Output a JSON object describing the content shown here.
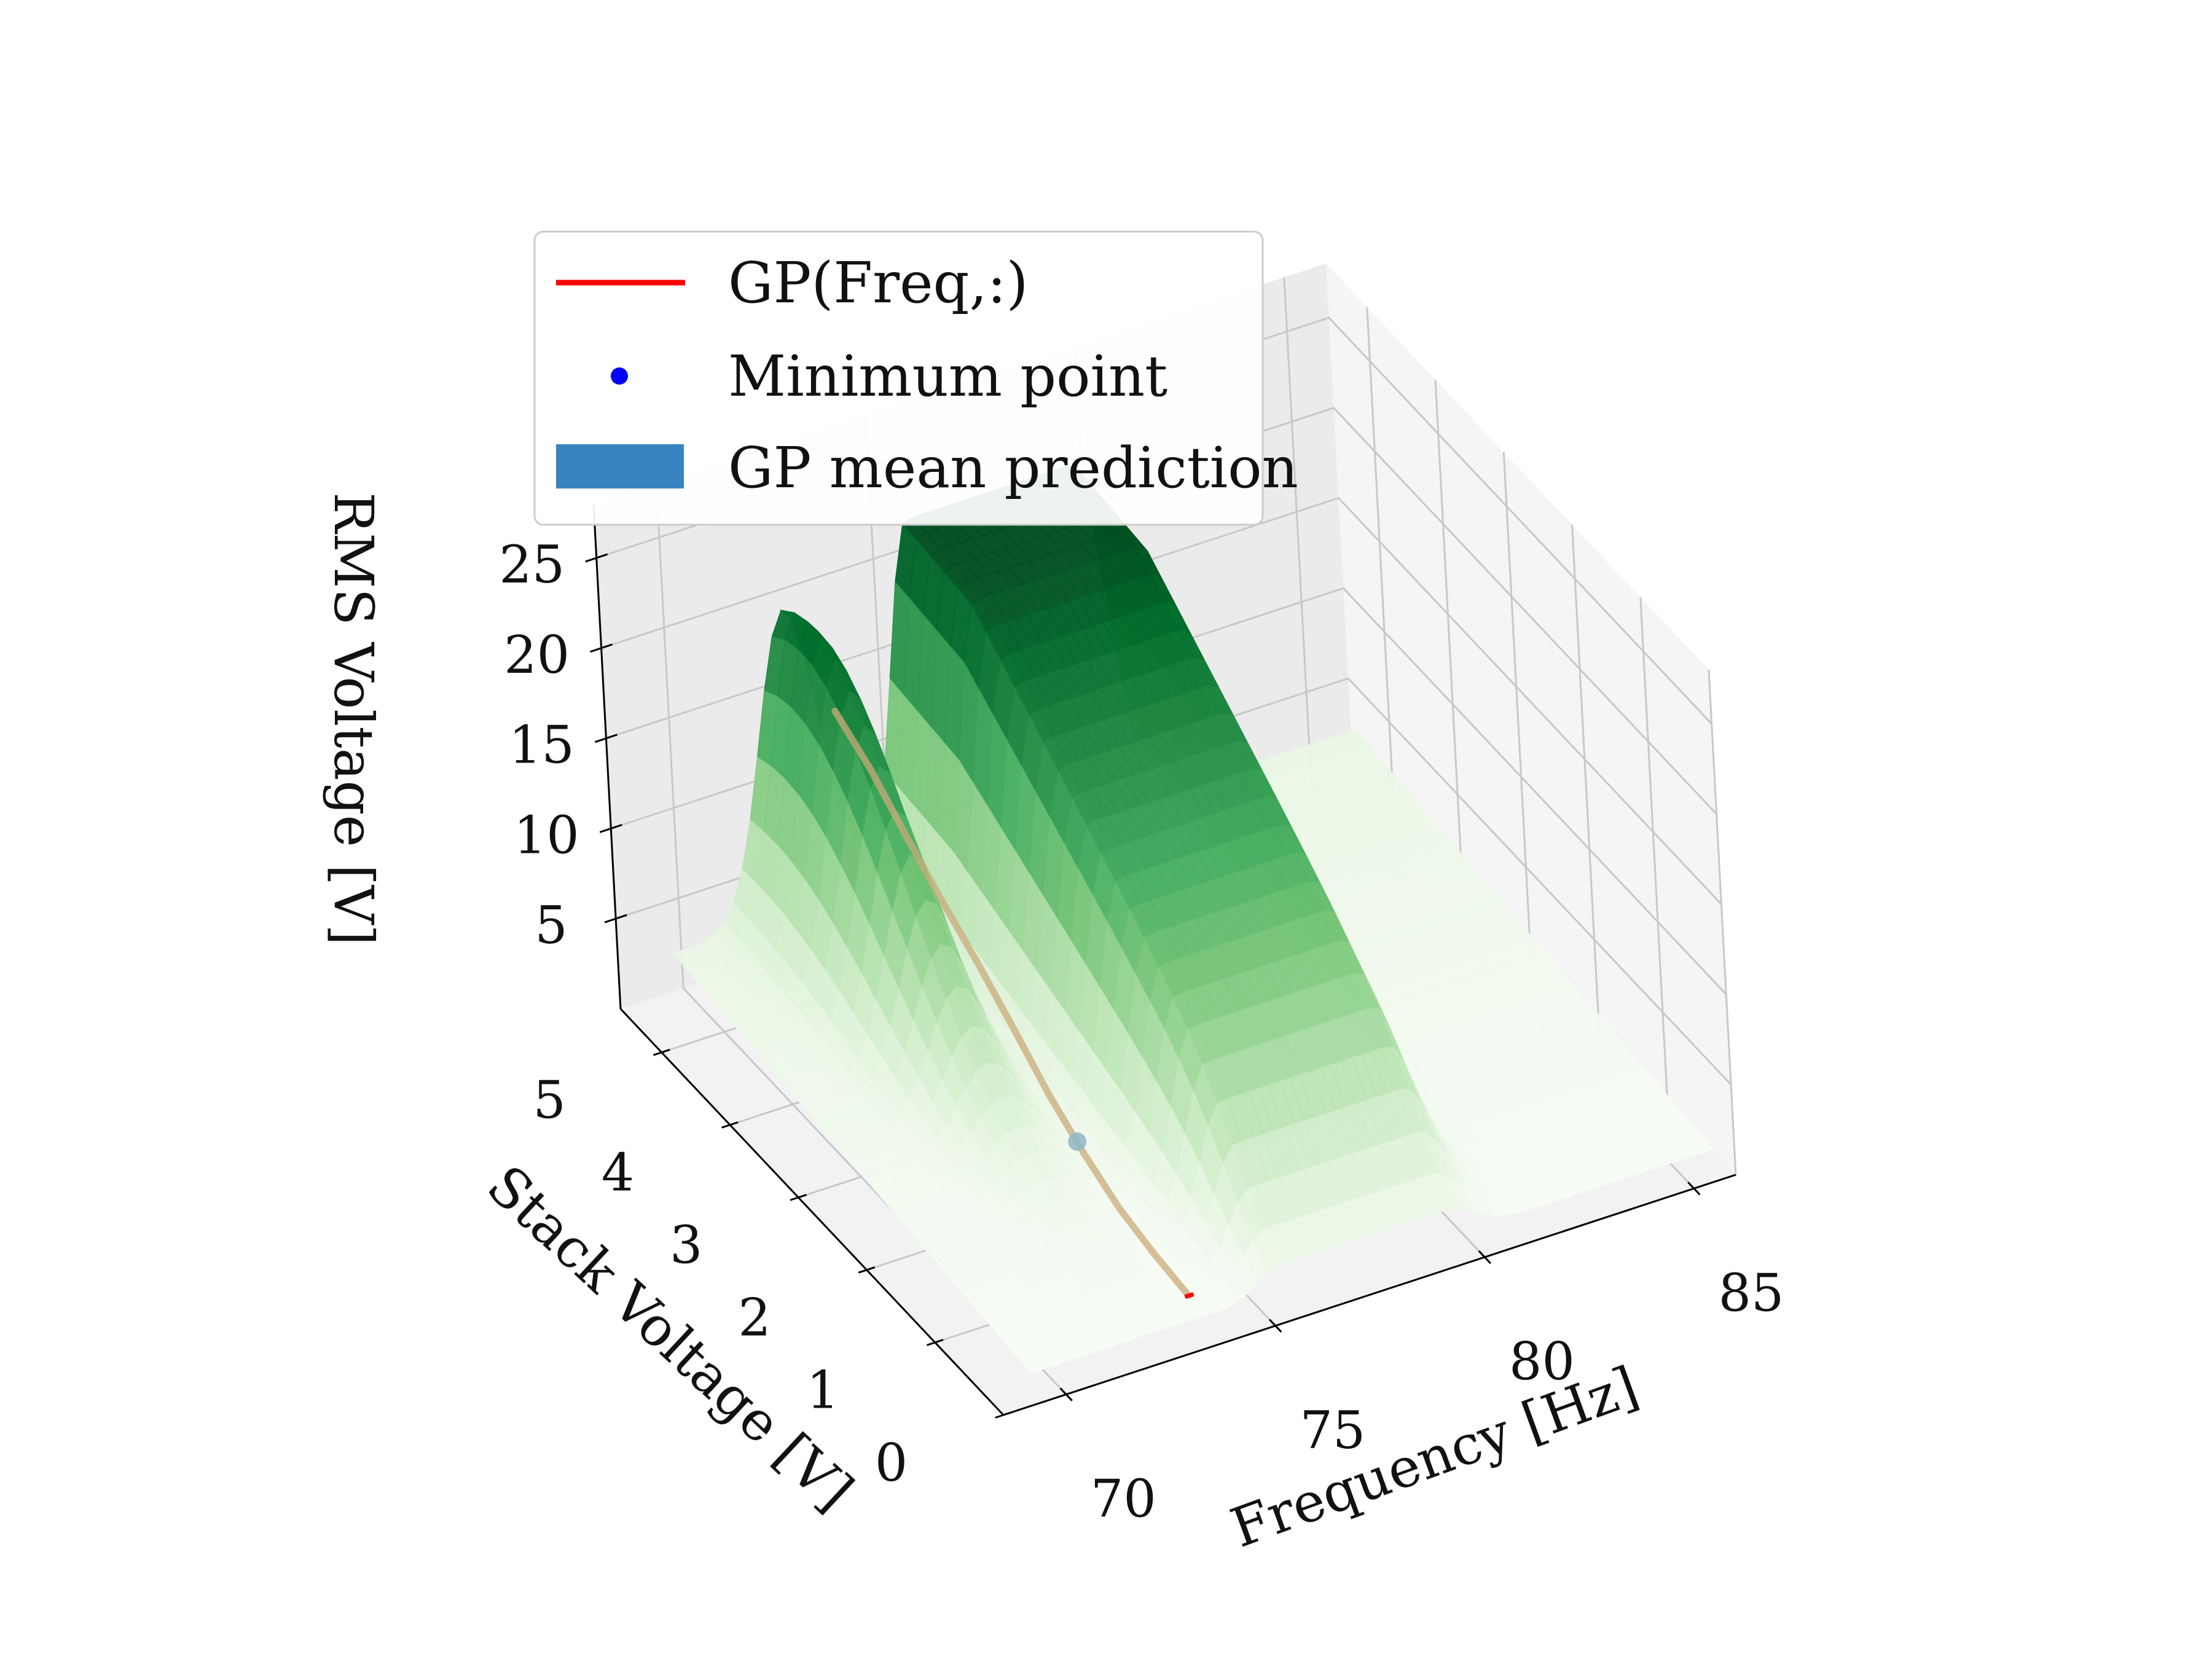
{
  "chart_data": {
    "type": "surface3d",
    "title": "",
    "xlabel": "Frequency [Hz]",
    "ylabel": "Stack Voltage [V]",
    "zlabel": "RMS Voltage [V]",
    "x_ticks": [
      "70",
      "75",
      "80",
      "85"
    ],
    "y_ticks": [
      "0",
      "1",
      "2",
      "3",
      "4",
      "5"
    ],
    "z_ticks": [
      "5",
      "10",
      "15",
      "20",
      "25"
    ],
    "xlim": [
      68.5,
      86
    ],
    "ylim": [
      0,
      5.6
    ],
    "zlim": [
      0,
      28
    ],
    "grid": true,
    "legend": {
      "position": "top-left",
      "entries": [
        {
          "label": "GP(Freq,:)",
          "marker": "line",
          "color": "#ff0000"
        },
        {
          "label": "Minimum point",
          "marker": "dot",
          "color": "#0000ff"
        },
        {
          "label": "GP mean prediction",
          "marker": "patch",
          "color": "#3a83c1"
        }
      ]
    },
    "surface_colormap": "Greens",
    "surface_peaks": [
      {
        "frequency": 72.2,
        "stack_voltage": 4.7,
        "rms_voltage": 18
      },
      {
        "frequency": 77.3,
        "stack_voltage": 2.6,
        "rms_voltage": 27
      }
    ],
    "gp_curve": {
      "frequency": 73,
      "stack_voltage": [
        0,
        0.5,
        1,
        1.5,
        2,
        2.5,
        3,
        3.5,
        4,
        4.5,
        5
      ],
      "rms_voltage": [
        3.2,
        3.5,
        4.0,
        5.0,
        6.3,
        8.0,
        9.6,
        11.0,
        12.6,
        14.3,
        15.5
      ]
    },
    "minimum_point": {
      "frequency": 73,
      "stack_voltage": 1.6,
      "rms_voltage": 5.3
    }
  }
}
